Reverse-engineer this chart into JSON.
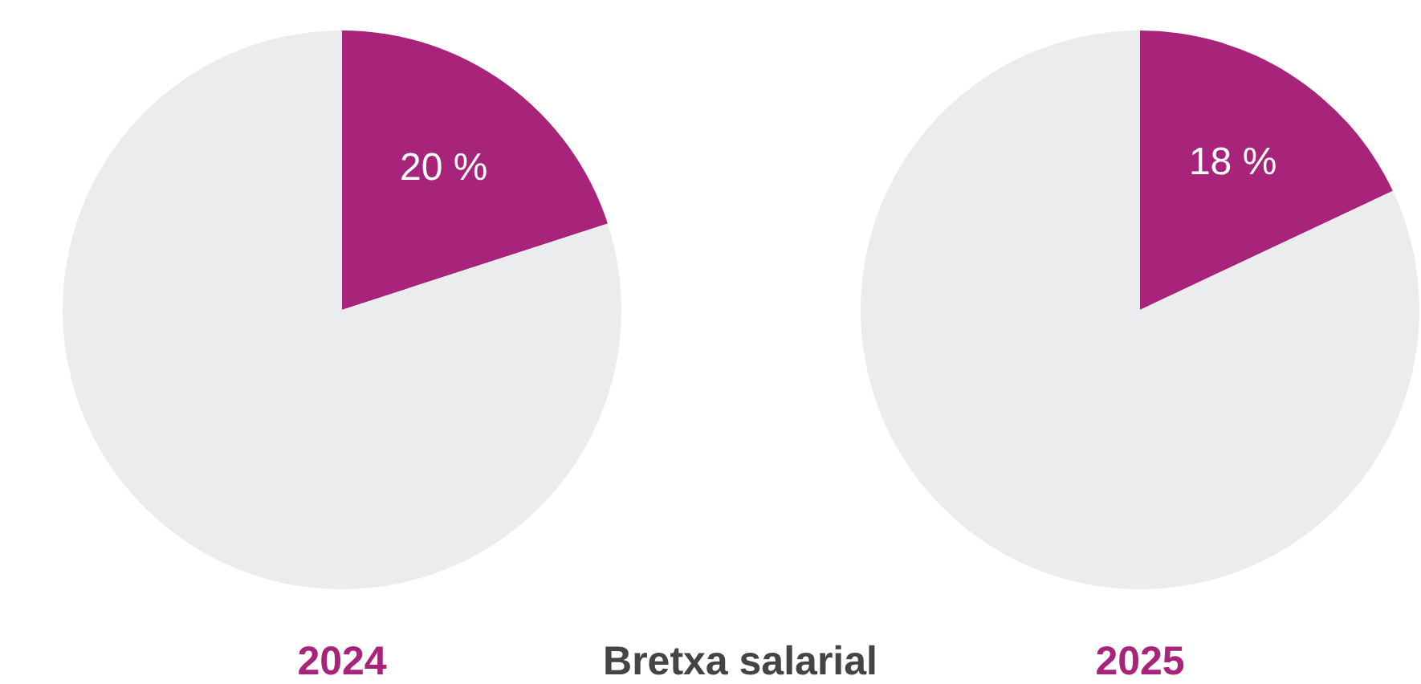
{
  "chart_data": [
    {
      "type": "pie",
      "title": "2024",
      "categories": [
        null,
        null
      ],
      "values": [
        20,
        80
      ],
      "colors": [
        "#a8237a",
        "#ebecee"
      ],
      "value_labels": [
        "20 %",
        null
      ],
      "annotations": [
        "Bretxa salarial"
      ]
    },
    {
      "type": "pie",
      "title": "2025",
      "categories": [
        null,
        null
      ],
      "values": [
        18,
        82
      ],
      "colors": [
        "#a8237a",
        "#ebecee"
      ],
      "value_labels": [
        "18 %",
        null
      ]
    }
  ]
}
